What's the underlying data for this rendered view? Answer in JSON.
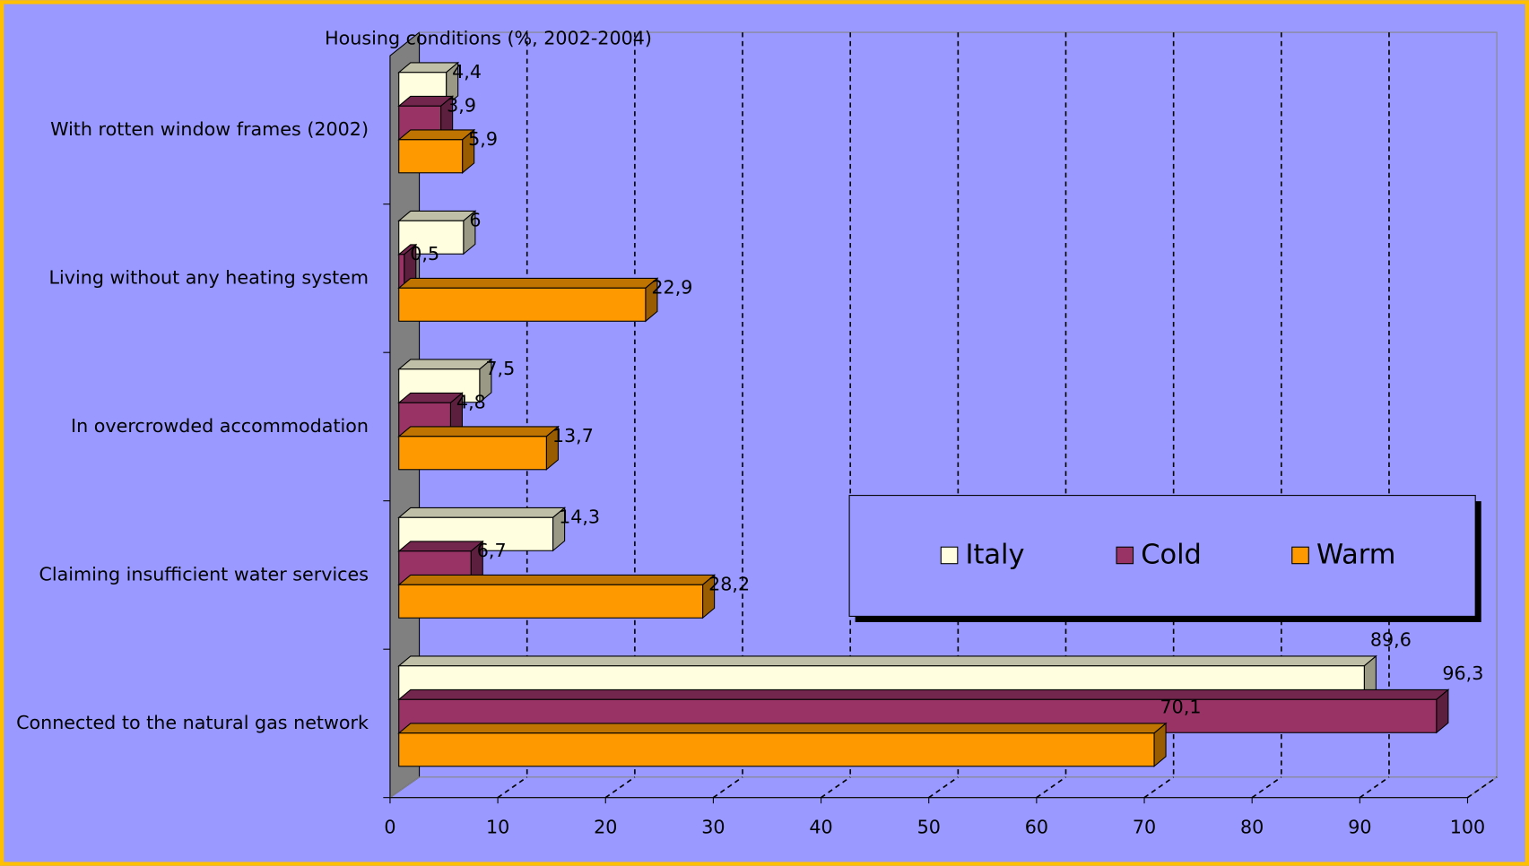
{
  "chart_data": {
    "type": "bar",
    "orientation": "horizontal",
    "title": "Housing conditions (%, 2002-2004)",
    "categories": [
      "With rotten window frames (2002)",
      "Living without any heating system",
      "In overcrowded accommodation",
      "Claiming insufficient water services",
      "Connected to the natural gas network"
    ],
    "series": [
      {
        "name": "Italy",
        "color": "#ffffe0",
        "values": [
          4.4,
          6,
          7.5,
          14.3,
          89.6
        ],
        "value_labels": [
          "4,4",
          "6",
          "7,5",
          "14,3",
          "89,6"
        ]
      },
      {
        "name": "Cold",
        "color": "#993366",
        "values": [
          3.9,
          0.5,
          4.8,
          6.7,
          96.3
        ],
        "value_labels": [
          "3,9",
          "0,5",
          "4,8",
          "6,7",
          "96,3"
        ]
      },
      {
        "name": "Warm",
        "color": "#ff9900",
        "values": [
          5.9,
          22.9,
          13.7,
          28.2,
          70.1
        ],
        "value_labels": [
          "5,9",
          "22,9",
          "13,7",
          "28,2",
          "70,1"
        ]
      }
    ],
    "xlim": [
      0,
      100
    ],
    "xticks": [
      0,
      10,
      20,
      30,
      40,
      50,
      60,
      70,
      80,
      90,
      100
    ],
    "grid": true
  }
}
